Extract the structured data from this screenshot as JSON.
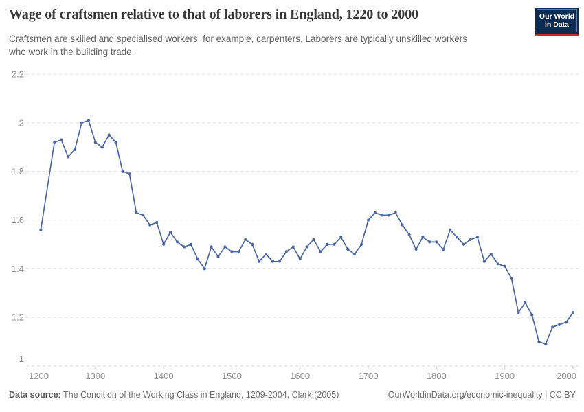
{
  "header": {
    "title": "Wage of craftsmen relative to that of laborers in England, 1220 to 2000",
    "subtitle_line1": "Craftsmen are skilled and specialised workers, for example, carpenters. Laborers are typically unskilled workers",
    "subtitle_line2": "who work in the building trade.",
    "logo": {
      "text": "Our World\nin Data",
      "bg_color": "#0d2a52",
      "accent_color": "#c5291d"
    }
  },
  "chart_data": {
    "type": "line",
    "title": "Wage of craftsmen relative to that of laborers in England, 1220 to 2000",
    "xlabel": "",
    "ylabel": "",
    "xlim": [
      1200,
      2010
    ],
    "ylim": [
      1,
      2.2
    ],
    "x_ticks": [
      1200,
      1300,
      1400,
      1500,
      1600,
      1700,
      1800,
      1900,
      2000
    ],
    "y_ticks": [
      1,
      1.2,
      1.4,
      1.6,
      1.8,
      2,
      2.2
    ],
    "grid": "horizontal-dashed",
    "legend": "none",
    "series": [
      {
        "name": "England",
        "color": "#4a69a2",
        "points": [
          [
            1220,
            1.56
          ],
          [
            1240,
            1.92
          ],
          [
            1250,
            1.93
          ],
          [
            1260,
            1.86
          ],
          [
            1270,
            1.89
          ],
          [
            1280,
            2.0
          ],
          [
            1290,
            2.01
          ],
          [
            1300,
            1.92
          ],
          [
            1310,
            1.9
          ],
          [
            1320,
            1.95
          ],
          [
            1330,
            1.92
          ],
          [
            1340,
            1.8
          ],
          [
            1350,
            1.79
          ],
          [
            1360,
            1.63
          ],
          [
            1370,
            1.62
          ],
          [
            1380,
            1.58
          ],
          [
            1390,
            1.59
          ],
          [
            1400,
            1.5
          ],
          [
            1410,
            1.55
          ],
          [
            1420,
            1.51
          ],
          [
            1430,
            1.49
          ],
          [
            1440,
            1.5
          ],
          [
            1450,
            1.44
          ],
          [
            1460,
            1.4
          ],
          [
            1470,
            1.49
          ],
          [
            1480,
            1.45
          ],
          [
            1490,
            1.49
          ],
          [
            1500,
            1.47
          ],
          [
            1510,
            1.47
          ],
          [
            1520,
            1.52
          ],
          [
            1530,
            1.5
          ],
          [
            1540,
            1.43
          ],
          [
            1550,
            1.46
          ],
          [
            1560,
            1.43
          ],
          [
            1570,
            1.43
          ],
          [
            1580,
            1.47
          ],
          [
            1590,
            1.49
          ],
          [
            1600,
            1.44
          ],
          [
            1610,
            1.49
          ],
          [
            1620,
            1.52
          ],
          [
            1630,
            1.47
          ],
          [
            1640,
            1.5
          ],
          [
            1650,
            1.5
          ],
          [
            1660,
            1.53
          ],
          [
            1670,
            1.48
          ],
          [
            1680,
            1.46
          ],
          [
            1690,
            1.5
          ],
          [
            1700,
            1.6
          ],
          [
            1710,
            1.63
          ],
          [
            1720,
            1.62
          ],
          [
            1730,
            1.62
          ],
          [
            1740,
            1.63
          ],
          [
            1750,
            1.58
          ],
          [
            1760,
            1.54
          ],
          [
            1770,
            1.48
          ],
          [
            1780,
            1.53
          ],
          [
            1790,
            1.51
          ],
          [
            1800,
            1.51
          ],
          [
            1810,
            1.48
          ],
          [
            1820,
            1.56
          ],
          [
            1830,
            1.53
          ],
          [
            1840,
            1.5
          ],
          [
            1850,
            1.52
          ],
          [
            1860,
            1.53
          ],
          [
            1870,
            1.43
          ],
          [
            1880,
            1.46
          ],
          [
            1890,
            1.42
          ],
          [
            1900,
            1.41
          ],
          [
            1910,
            1.36
          ],
          [
            1920,
            1.22
          ],
          [
            1930,
            1.26
          ],
          [
            1940,
            1.21
          ],
          [
            1950,
            1.1
          ],
          [
            1960,
            1.09
          ],
          [
            1970,
            1.16
          ],
          [
            1980,
            1.17
          ],
          [
            1990,
            1.18
          ],
          [
            2000,
            1.22
          ]
        ]
      }
    ],
    "style": {
      "gridline_color": "#dedede",
      "axis_tick_color": "#cccccc",
      "tick_label_color": "#8e8e8e"
    }
  },
  "footer": {
    "datasource_label": "Data source:",
    "datasource_text": " The Condition of the Working Class in England, 1209-2004, Clark (2005)",
    "link_text": "OurWorldinData.org/economic-inequality | CC BY"
  }
}
